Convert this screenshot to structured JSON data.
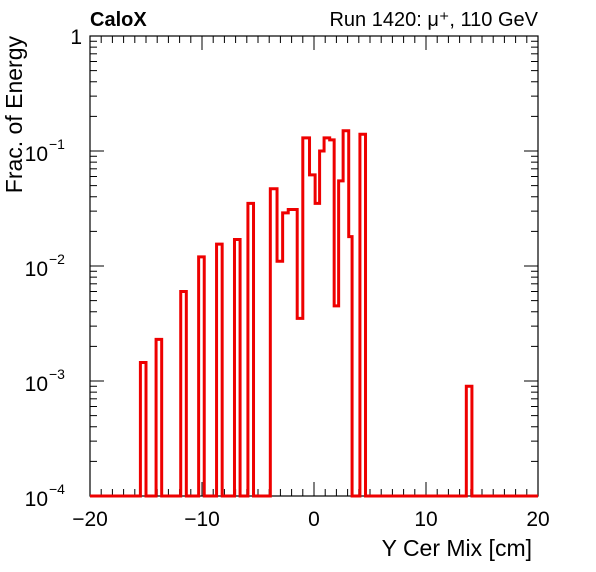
{
  "header": {
    "left_title": "CaloX",
    "right_title": "Run 1420:   μ⁺, 110 GeV"
  },
  "chart_data": {
    "type": "histogram-step",
    "xlabel": "Y Cer Mix [cm]",
    "ylabel": "Frac. of Energy",
    "xlim": [
      -20,
      20
    ],
    "ylim": [
      0.0001,
      1
    ],
    "yscale": "log",
    "x_ticks": [
      {
        "value": -20,
        "label": "−20"
      },
      {
        "value": -10,
        "label": "−10"
      },
      {
        "value": 0,
        "label": "0"
      },
      {
        "value": 10,
        "label": "10"
      },
      {
        "value": 20,
        "label": "20"
      }
    ],
    "y_ticks": [
      {
        "value": 1,
        "base": "1",
        "exp": ""
      },
      {
        "value": 0.1,
        "base": "10",
        "exp": "−1"
      },
      {
        "value": 0.01,
        "base": "10",
        "exp": "−2"
      },
      {
        "value": 0.001,
        "base": "10",
        "exp": "−3"
      },
      {
        "value": 0.0001,
        "base": "10",
        "exp": "−4"
      }
    ],
    "line_color": "#ee0000",
    "bins": [
      {
        "x0": -15.5,
        "x1": -15.0,
        "y": 0.00145
      },
      {
        "x0": -14.1,
        "x1": -13.6,
        "y": 0.0023
      },
      {
        "x0": -11.9,
        "x1": -11.4,
        "y": 0.006
      },
      {
        "x0": -10.3,
        "x1": -9.8,
        "y": 0.012
      },
      {
        "x0": -8.7,
        "x1": -8.2,
        "y": 0.0155
      },
      {
        "x0": -7.1,
        "x1": -6.6,
        "y": 0.017
      },
      {
        "x0": -5.9,
        "x1": -5.4,
        "y": 0.035
      },
      {
        "x0": -3.9,
        "x1": -3.3,
        "y": 0.047
      },
      {
        "x0": -3.3,
        "x1": -2.8,
        "y": 0.011
      },
      {
        "x0": -2.8,
        "x1": -2.3,
        "y": 0.029
      },
      {
        "x0": -2.3,
        "x1": -1.5,
        "y": 0.031
      },
      {
        "x0": -1.5,
        "x1": -1.0,
        "y": 0.0035
      },
      {
        "x0": -1.0,
        "x1": -0.4,
        "y": 0.13
      },
      {
        "x0": -0.4,
        "x1": 0.1,
        "y": 0.062
      },
      {
        "x0": 0.1,
        "x1": 0.5,
        "y": 0.035
      },
      {
        "x0": 0.5,
        "x1": 0.9,
        "y": 0.1
      },
      {
        "x0": 0.9,
        "x1": 1.4,
        "y": 0.13
      },
      {
        "x0": 1.4,
        "x1": 1.8,
        "y": 0.125
      },
      {
        "x0": 1.8,
        "x1": 2.2,
        "y": 0.0045
      },
      {
        "x0": 2.2,
        "x1": 2.6,
        "y": 0.055
      },
      {
        "x0": 2.6,
        "x1": 3.1,
        "y": 0.15
      },
      {
        "x0": 3.1,
        "x1": 3.4,
        "y": 0.018
      },
      {
        "x0": 4.1,
        "x1": 4.6,
        "y": 0.14
      },
      {
        "x0": 13.6,
        "x1": 14.1,
        "y": 0.0009
      }
    ]
  }
}
